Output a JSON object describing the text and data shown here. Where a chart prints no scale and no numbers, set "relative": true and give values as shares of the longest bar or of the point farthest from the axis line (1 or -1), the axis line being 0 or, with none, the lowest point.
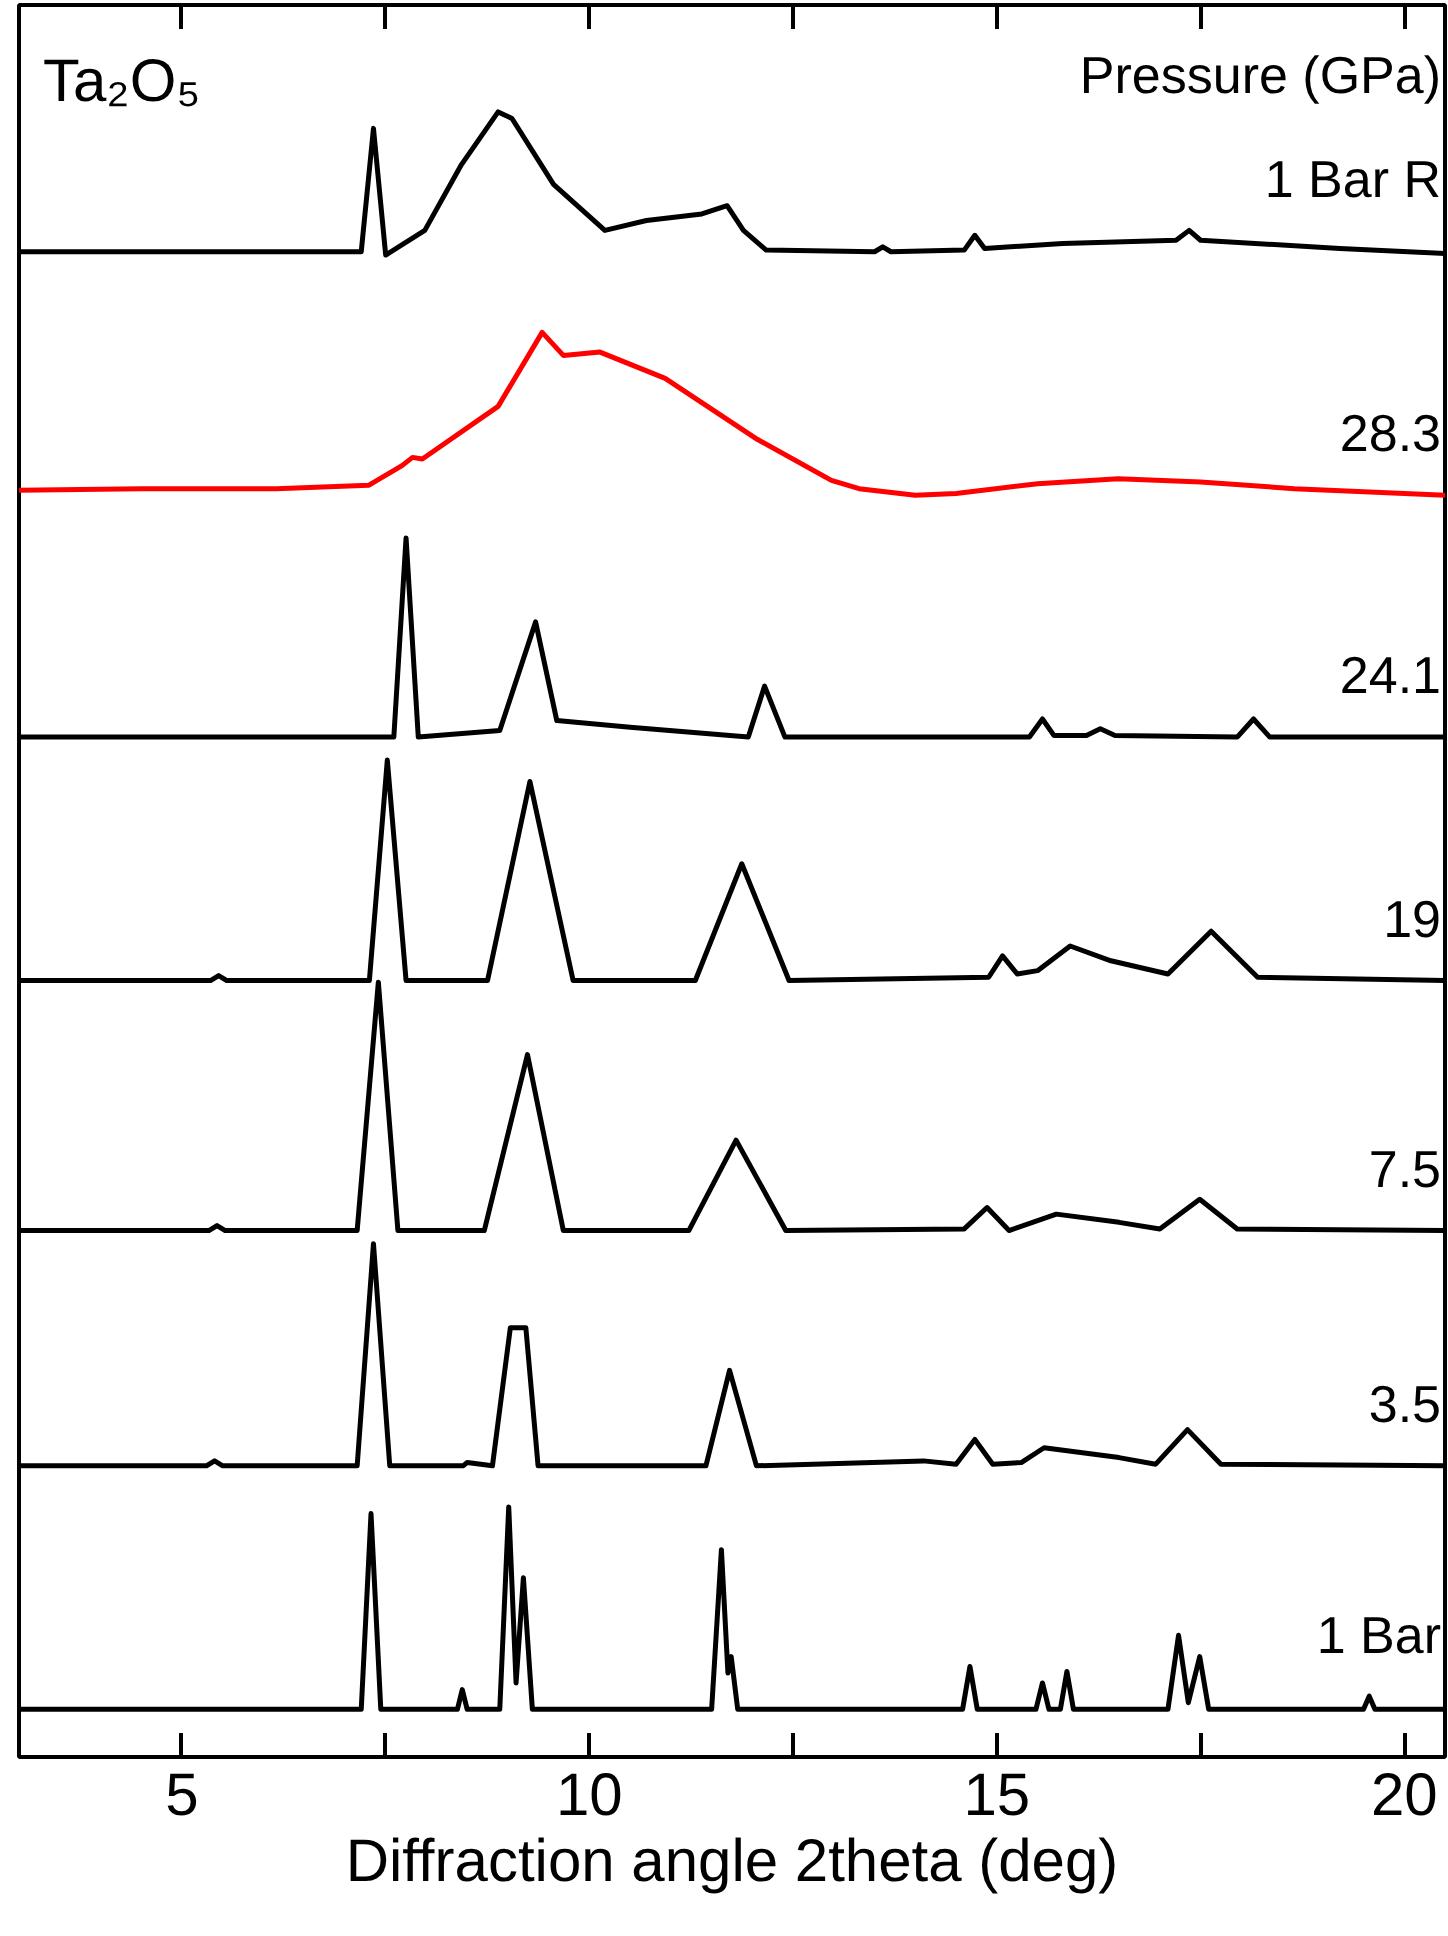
{
  "chart_data": {
    "type": "line",
    "relative": true,
    "xlabel": "Diffraction angle 2theta (deg)",
    "legend_title": "Pressure (GPa)",
    "annotations": [
      "Ta₂O₅"
    ],
    "xlim": [
      3,
      20.5
    ],
    "xticks": [
      5,
      {
        "value": 7.5,
        "label": null
      },
      10,
      {
        "value": 12.5,
        "label": null
      },
      15,
      {
        "value": 17.5,
        "label": null
      },
      20
    ],
    "tick_labels": "x",
    "grid": false,
    "marker": "none",
    "line_style": "solid",
    "series": [
      {
        "name": "1 Bar R",
        "color": "#000000",
        "x": [
          3,
          5,
          7.2,
          7.35,
          7.5,
          7.98,
          8.43,
          8.88,
          9.05,
          9.56,
          10.19,
          10.7,
          11.38,
          11.69,
          11.89,
          12.17,
          13.5,
          13.6,
          13.7,
          14.6,
          14.73,
          14.85,
          15.81,
          17.2,
          17.36,
          17.5,
          19.21,
          20.5
        ],
        "values": [
          0.915,
          0.915,
          0.915,
          0.99,
          0.913,
          0.928,
          0.968,
          1.0,
          0.996,
          0.956,
          0.928,
          0.934,
          0.938,
          0.943,
          0.928,
          0.916,
          0.915,
          0.918,
          0.915,
          0.916,
          0.925,
          0.917,
          0.92,
          0.922,
          0.928,
          0.922,
          0.917,
          0.914
        ]
      },
      {
        "name": "28.3",
        "color": "#ff0000",
        "x": [
          3,
          4.5,
          6.16,
          7.29,
          7.7,
          7.83,
          7.95,
          8.88,
          9.42,
          9.68,
          10.13,
          10.93,
          12.06,
          12.97,
          13.31,
          14.0,
          14.5,
          15.5,
          16.49,
          17.5,
          18.65,
          20.5
        ],
        "values": [
          0.77,
          0.771,
          0.771,
          0.773,
          0.785,
          0.79,
          0.789,
          0.821,
          0.866,
          0.852,
          0.854,
          0.838,
          0.801,
          0.776,
          0.771,
          0.767,
          0.768,
          0.774,
          0.777,
          0.775,
          0.771,
          0.767
        ]
      },
      {
        "name": "24.1",
        "color": "#000000",
        "x": [
          3,
          7.6,
          7.75,
          7.9,
          8.9,
          9.34,
          9.6,
          10.5,
          11.95,
          12.15,
          12.4,
          15.4,
          15.56,
          15.7,
          16.1,
          16.27,
          16.45,
          17.95,
          18.15,
          18.35,
          20.5
        ],
        "values": [
          0.62,
          0.62,
          0.741,
          0.62,
          0.624,
          0.69,
          0.63,
          0.626,
          0.62,
          0.651,
          0.62,
          0.62,
          0.631,
          0.621,
          0.621,
          0.625,
          0.621,
          0.62,
          0.631,
          0.62,
          0.62
        ]
      },
      {
        "name": "19",
        "color": "#000000",
        "x": [
          3,
          5.35,
          5.45,
          5.55,
          7.3,
          7.52,
          7.75,
          8.75,
          9.27,
          9.8,
          11.3,
          11.87,
          12.45,
          14.9,
          15.07,
          15.25,
          15.5,
          15.9,
          16.4,
          17.1,
          17.63,
          18.2,
          20.5
        ],
        "values": [
          0.472,
          0.472,
          0.475,
          0.472,
          0.472,
          0.606,
          0.472,
          0.472,
          0.593,
          0.472,
          0.472,
          0.543,
          0.472,
          0.474,
          0.487,
          0.476,
          0.478,
          0.493,
          0.484,
          0.476,
          0.502,
          0.474,
          0.472
        ]
      },
      {
        "name": "7.5",
        "color": "#000000",
        "x": [
          3,
          5.33,
          5.43,
          5.53,
          7.15,
          7.41,
          7.65,
          8.71,
          9.24,
          9.68,
          11.22,
          11.8,
          12.41,
          14.6,
          14.88,
          15.15,
          15.73,
          16.5,
          17.0,
          17.49,
          17.95,
          20.5
        ],
        "values": [
          0.32,
          0.32,
          0.323,
          0.32,
          0.32,
          0.471,
          0.32,
          0.32,
          0.427,
          0.32,
          0.32,
          0.375,
          0.32,
          0.321,
          0.334,
          0.32,
          0.33,
          0.325,
          0.321,
          0.339,
          0.321,
          0.32
        ]
      },
      {
        "name": "3.5",
        "color": "#000000",
        "x": [
          3,
          5.3,
          5.4,
          5.5,
          7.15,
          7.35,
          7.55,
          8.45,
          8.5,
          8.81,
          9.03,
          9.22,
          9.37,
          11.43,
          11.72,
          12.05,
          14.1,
          14.5,
          14.73,
          14.95,
          15.3,
          15.58,
          16.5,
          16.95,
          17.34,
          17.75,
          20.5
        ],
        "values": [
          0.177,
          0.177,
          0.18,
          0.177,
          0.177,
          0.312,
          0.177,
          0.177,
          0.179,
          0.177,
          0.261,
          0.261,
          0.177,
          0.177,
          0.235,
          0.177,
          0.18,
          0.178,
          0.193,
          0.178,
          0.179,
          0.188,
          0.182,
          0.178,
          0.199,
          0.178,
          0.177
        ]
      },
      {
        "name": "1 Bar",
        "color": "#000000",
        "x": [
          3,
          7.2,
          7.32,
          7.44,
          8.38,
          8.44,
          8.5,
          8.9,
          9.01,
          9.1,
          9.19,
          9.3,
          11.5,
          11.62,
          11.7,
          11.74,
          11.82,
          14.58,
          14.67,
          14.76,
          15.48,
          15.56,
          15.64,
          15.78,
          15.86,
          15.94,
          17.1,
          17.23,
          17.35,
          17.49,
          17.6,
          19.5,
          19.57,
          19.64,
          20.5
        ],
        "values": [
          0.029,
          0.029,
          0.148,
          0.029,
          0.029,
          0.041,
          0.029,
          0.029,
          0.152,
          0.045,
          0.109,
          0.029,
          0.029,
          0.126,
          0.051,
          0.061,
          0.029,
          0.029,
          0.055,
          0.029,
          0.029,
          0.045,
          0.029,
          0.029,
          0.052,
          0.029,
          0.029,
          0.074,
          0.033,
          0.061,
          0.029,
          0.029,
          0.037,
          0.029,
          0.029
        ]
      }
    ]
  }
}
